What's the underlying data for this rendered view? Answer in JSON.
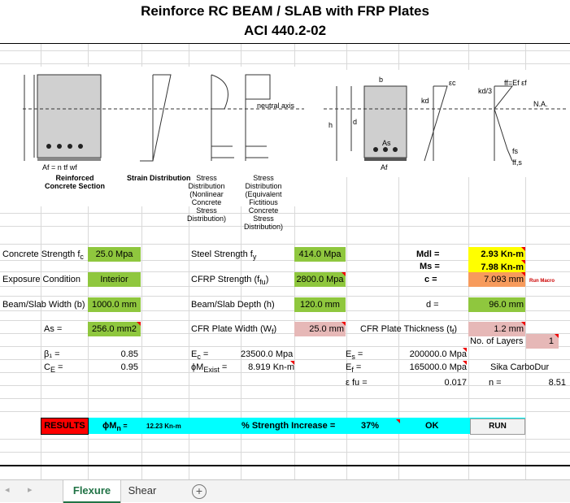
{
  "title": {
    "line1": "Reinforce RC BEAM / SLAB with FRP Plates",
    "line2": "ACI 440.2-02"
  },
  "figures": {
    "left_captions": [
      "Reinforced Concrete Section",
      "Strain Distribution",
      "Stress Distribution (Nonlinear Concrete Stress Distribution)",
      "Stress Distribution (Equivalent Fictitious Concrete Stress Distribution)"
    ],
    "left_labels": {
      "neutral": "neutral axis",
      "formula": "Af = n tf wf"
    },
    "right_labels": {
      "b": "b",
      "h": "h",
      "d": "d",
      "kd": "kd",
      "kd3": "kd/3",
      "as": "As",
      "af": "Af",
      "na": "N.A.",
      "fs": "fs",
      "ff": "ff,s",
      "eps": "εc",
      "ffe": "ff=Ef εf"
    }
  },
  "inputs": {
    "concrete_label": "Concrete Strength f",
    "concrete_sub": "c",
    "concrete_value": "25.0 Mpa",
    "exposure_label": "Exposure Condition",
    "exposure_value": "Interior",
    "width_label": "Beam/Slab Width (b)",
    "width_value": "1000.0 mm",
    "as_label": "As =",
    "as_value": "256.0 mm2",
    "steel_label": "Steel Strength f",
    "steel_sub": "y",
    "steel_value": "414.0 Mpa",
    "cfrp_label": "CFRP Strength (f",
    "cfrp_sub": "fu",
    "cfrp_close": ")",
    "cfrp_value": "2800.0 Mpa",
    "depth_label": "Beam/Slab Depth (h)",
    "depth_value": "120.0 mm",
    "plate_w_label": "CFR Plate Width (W",
    "plate_w_sub": "f",
    "plate_w_close": ")",
    "plate_w_value": "25.0 mm",
    "plate_t_label": "CFR Plate Thickness (t",
    "plate_t_sub": "f",
    "plate_t_close": ")",
    "plate_t_value": "1.2 mm",
    "layers_label": "No. of Layers",
    "layers_value": "1",
    "mdl_label": "Mdl   =",
    "mdl_value": "2.93 Kn-m",
    "ms_label": "Ms   =",
    "ms_value": "7.98 Kn-m",
    "c_label": "c   =",
    "c_value": "7.093 mm",
    "run_macro": "Run Macro",
    "d_label": "d  =",
    "d_value": "96.0 mm"
  },
  "calc": {
    "beta_label": "β₁  =",
    "beta_value": "0.85",
    "ce_label": "C",
    "ce_sub": "E",
    "ce_eq": "  =",
    "ce_value": "0.95",
    "ec_label": "E",
    "ec_sub": "c",
    "ec_eq": "  =",
    "ec_value": "23500.0 Mpa",
    "mexist_label": "ϕM",
    "mexist_sub": "Exist",
    "mexist_eq": " =",
    "mexist_value": "8.919 Kn-m",
    "es_label": "E",
    "es_sub": "s",
    "es_eq": "  =",
    "es_value": "200000.0 Mpa",
    "ef_label": "E",
    "ef_sub": "f",
    "ef_eq": "  =",
    "ef_value": "165000.0 Mpa",
    "efu_label": "ε fu  =",
    "efu_value": "0.017",
    "product": "Sika CarboDur",
    "n_label": "n  =",
    "n_value": "8.51"
  },
  "results": {
    "button": "RESULTS",
    "mn_label": "ϕM",
    "mn_sub": "n",
    "mn_eq": " =",
    "mn_value": "12.23 Kn-m",
    "increase_label": "% Strength Increase =",
    "increase_value": "37%",
    "status": "OK",
    "run": "RUN"
  },
  "tabs": {
    "active": "Flexure",
    "other": "Shear",
    "add": "+",
    "prev": "◂",
    "next": "▸"
  },
  "colors": {
    "green": "#8fc73e",
    "yellow": "#ffff00",
    "orange": "#f79b5c",
    "pink": "#e6b8b7",
    "cyan": "#00ffff",
    "red": "#ff0000",
    "tab_green": "#217346"
  }
}
